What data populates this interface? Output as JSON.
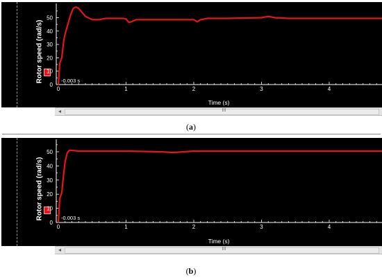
{
  "colors": {
    "series": "#e8141c",
    "background": "#000000",
    "axis": "#ffffff"
  },
  "panels": [
    {
      "caption": "a",
      "ylabel": "Rotor speed (rad/s)",
      "xlabel": "Time (s)",
      "cursor_label": "-0.003 s",
      "scroll_grip": "III",
      "scroll_left": "◂",
      "yticks": [
        "0",
        "10",
        "20",
        "30",
        "40",
        "50"
      ],
      "xticks": [
        "0",
        "1",
        "2",
        "3",
        "4"
      ]
    },
    {
      "caption": "b",
      "ylabel": "Rotor speed (rad/s)",
      "xlabel": "Time (s)",
      "cursor_label": "-0.003 s",
      "scroll_grip": "III",
      "scroll_left": "◂",
      "yticks": [
        "0",
        "10",
        "20",
        "30",
        "40",
        "50"
      ],
      "xticks": [
        "0",
        "1",
        "2",
        "3",
        "4"
      ]
    }
  ],
  "chart_data": [
    {
      "type": "line",
      "ylabel": "Rotor speed (rad/s)",
      "xlabel": "Time (s)",
      "xlim": [
        0,
        4.8
      ],
      "ylim": [
        0,
        58
      ],
      "grid": false,
      "series": [
        {
          "x": [
            0,
            0.02,
            0.05,
            0.08,
            0.1,
            0.14,
            0.18,
            0.22,
            0.26,
            0.3,
            0.35,
            0.4,
            0.5,
            0.6,
            0.7,
            0.8,
            0.95,
            1.0,
            1.04,
            1.08,
            1.15,
            1.3,
            1.5,
            2.0,
            2.05,
            2.1,
            2.2,
            2.5,
            3.0,
            3.1,
            3.2,
            3.4,
            3.6,
            4.0,
            4.5,
            4.8
          ],
          "y": [
            0,
            16,
            20,
            33,
            38,
            45,
            52,
            57,
            58,
            57,
            54,
            51,
            48.5,
            48.5,
            49.5,
            49.5,
            49.5,
            49,
            46.5,
            47,
            48.5,
            48.5,
            48.5,
            48.5,
            47,
            48.5,
            49.5,
            49.5,
            50,
            51,
            50,
            49.5,
            49.5,
            49.5,
            49.5,
            49.5
          ]
        }
      ]
    },
    {
      "type": "line",
      "ylabel": "Rotor speed (rad/s)",
      "xlabel": "Time (s)",
      "xlim": [
        0,
        4.8
      ],
      "ylim": [
        0,
        58
      ],
      "grid": false,
      "series": [
        {
          "x": [
            0,
            0.02,
            0.05,
            0.08,
            0.1,
            0.13,
            0.16,
            0.2,
            0.3,
            0.5,
            1.0,
            1.5,
            1.7,
            2.0,
            2.5,
            3.0,
            3.5,
            4.0,
            4.5,
            4.8
          ],
          "y": [
            0,
            17,
            21,
            35,
            43,
            49,
            51,
            51,
            50.5,
            50.5,
            50.5,
            50,
            49.5,
            50.5,
            50.5,
            50.5,
            50.5,
            50.5,
            50.5,
            50.5
          ]
        }
      ]
    }
  ]
}
